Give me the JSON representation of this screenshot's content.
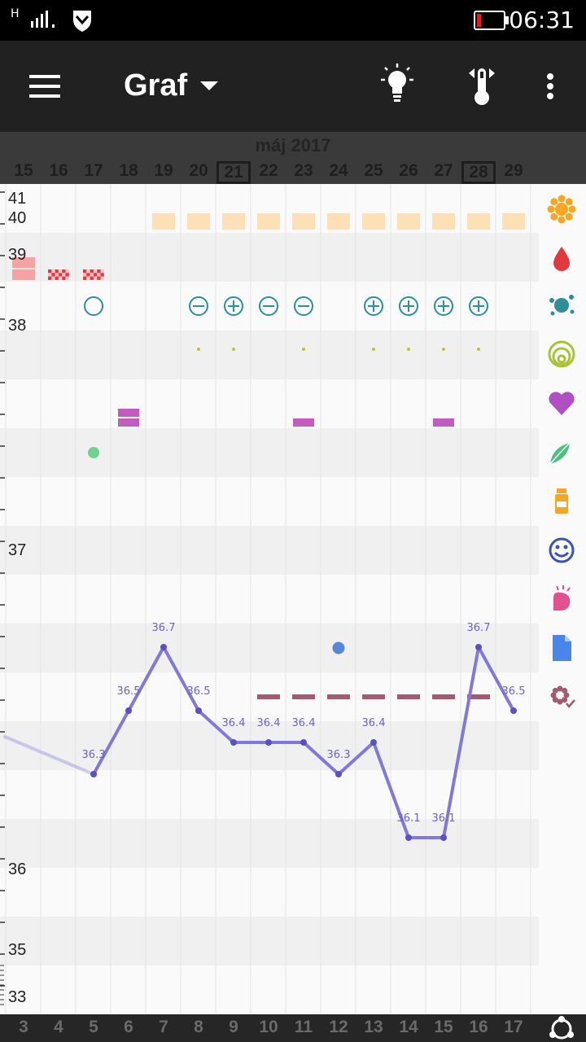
{
  "status_bar": {
    "network": "H",
    "time": "06:31"
  },
  "app_bar": {
    "title": "Graf"
  },
  "month_label": "máj 2017",
  "calendar_days": [
    "15",
    "16",
    "17",
    "18",
    "19",
    "20",
    "21",
    "22",
    "23",
    "24",
    "25",
    "26",
    "27",
    "28",
    "29"
  ],
  "boxed_days": [
    "21",
    "28"
  ],
  "cycle_days": [
    "3",
    "4",
    "5",
    "6",
    "7",
    "8",
    "9",
    "10",
    "11",
    "12",
    "13",
    "14",
    "15",
    "16",
    "17"
  ],
  "y_axis_labels": [
    "41",
    "40",
    "39",
    "38",
    "37",
    "36",
    "35",
    "33"
  ],
  "colors": {
    "temp_line": "#8378d8",
    "fertility": "#2d8f99",
    "bleeding_heavy": "#f4a3a3",
    "bleeding_spot": "#e0393f",
    "sun_bar": "#fde0b6",
    "mucus_dot": "#b9c53a",
    "intercourse": "#c45bc1",
    "pill_dot": "#6fd38f",
    "blue_dot": "#5a86d8",
    "dash": "#a05a72"
  },
  "chart_data": {
    "type": "line",
    "x": [
      "3",
      "4",
      "5",
      "6",
      "7",
      "8",
      "9",
      "10",
      "11",
      "12",
      "13",
      "14",
      "15",
      "16",
      "17"
    ],
    "series": [
      {
        "values": [
          null,
          null,
          36.3,
          36.5,
          36.7,
          36.5,
          36.4,
          36.4,
          36.4,
          36.3,
          36.4,
          36.1,
          36.1,
          36.7,
          36.5
        ]
      }
    ],
    "value_labels": [
      "36.3",
      "36.5",
      "36.7",
      "36.5",
      "36.4",
      "36.4",
      "36.4",
      "36.3",
      "36.4",
      "36.1",
      "36.1",
      "36.7",
      "36.5"
    ],
    "sun_days": [
      7,
      8,
      9,
      10,
      11,
      12,
      13,
      14,
      15,
      16,
      17
    ],
    "bleeding_days": [
      3,
      4,
      5
    ],
    "test_results": [
      {
        "day": 5,
        "result": "empty"
      },
      {
        "day": 8,
        "result": "minus"
      },
      {
        "day": 9,
        "result": "plus"
      },
      {
        "day": 10,
        "result": "minus"
      },
      {
        "day": 11,
        "result": "minus"
      },
      {
        "day": 13,
        "result": "plus"
      },
      {
        "day": 14,
        "result": "plus"
      },
      {
        "day": 15,
        "result": "plus"
      },
      {
        "day": 16,
        "result": "plus"
      }
    ],
    "mucus_days": [
      8,
      9,
      11,
      13,
      14,
      15,
      16
    ],
    "intercourse_days": [
      6,
      11,
      15
    ],
    "pill_days": [
      5
    ],
    "note_days": [
      12
    ],
    "dash_days": [
      10,
      11,
      12,
      13,
      14,
      15,
      16
    ]
  },
  "side_icons": [
    "sun-icon",
    "blood-drop-icon",
    "splash-icon",
    "cervix-rings-icon",
    "heart-icon",
    "leaf-icon",
    "medicine-bottle-icon",
    "smiley-icon",
    "breast-icon",
    "document-icon",
    "flower-check-icon"
  ]
}
